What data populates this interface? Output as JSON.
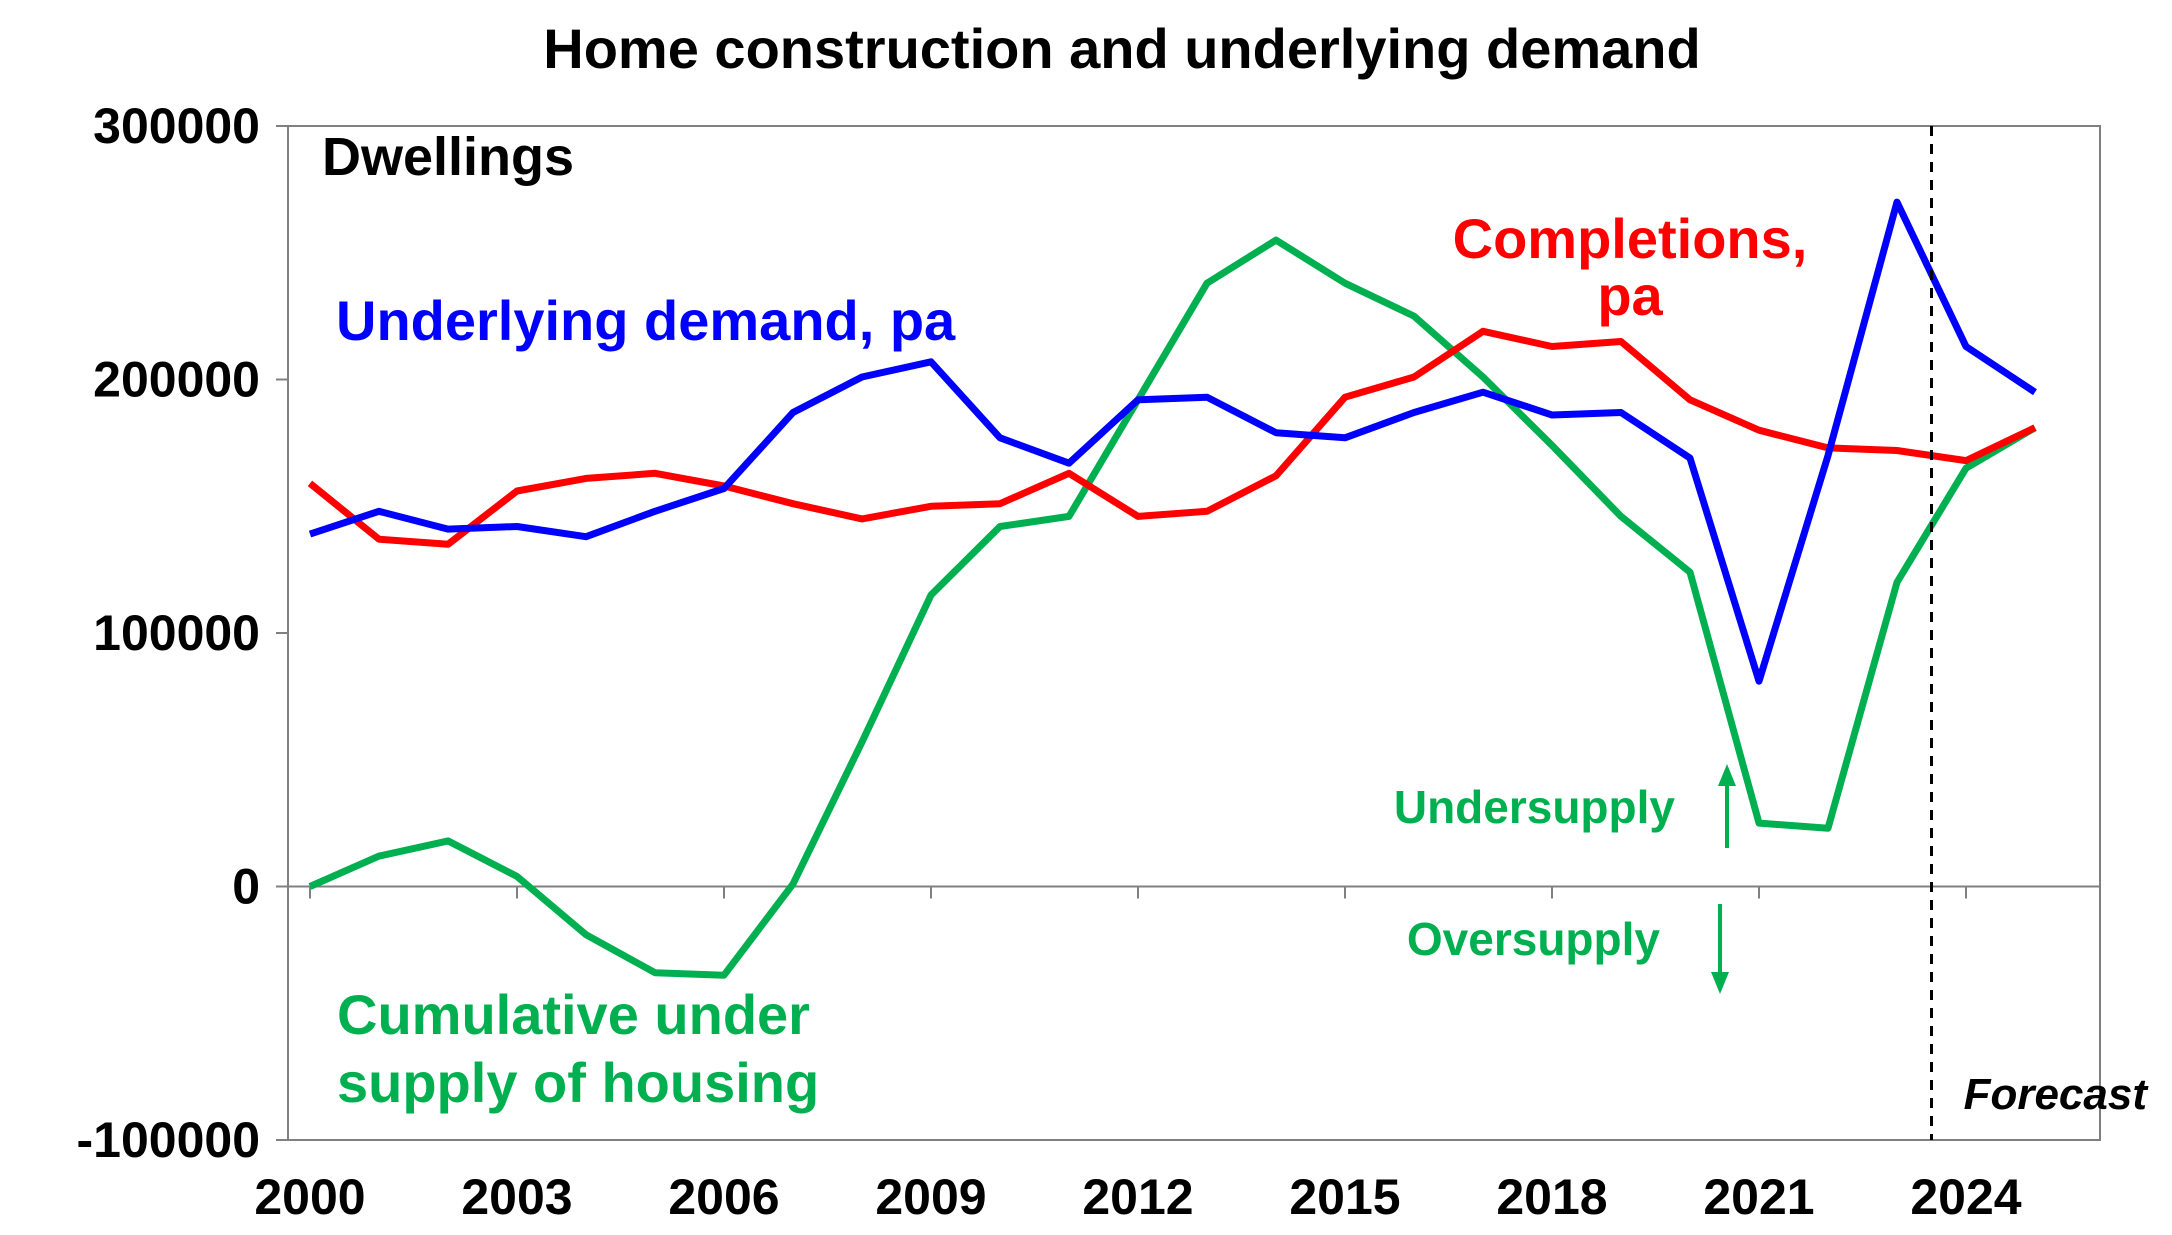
{
  "chart_data": {
    "type": "line",
    "title": "Home construction and underlying demand",
    "unit_label": "Dwellings",
    "x": [
      2000,
      2001,
      2002,
      2003,
      2004,
      2005,
      2006,
      2007,
      2008,
      2009,
      2010,
      2011,
      2012,
      2013,
      2014,
      2015,
      2016,
      2017,
      2018,
      2019,
      2020,
      2021,
      2022,
      2023,
      2024,
      2025
    ],
    "xticks": [
      "2000",
      "2003",
      "2006",
      "2009",
      "2012",
      "2015",
      "2018",
      "2021",
      "2024"
    ],
    "xtick_values": [
      2000,
      2003,
      2006,
      2009,
      2012,
      2015,
      2018,
      2021,
      2024
    ],
    "xlim": [
      2000,
      2026
    ],
    "ylim": [
      -100000,
      300000
    ],
    "yticks": [
      "-100000",
      "0",
      "100000",
      "200000",
      "300000"
    ],
    "ytick_values": [
      -100000,
      0,
      100000,
      200000,
      300000
    ],
    "series": [
      {
        "name": "Underlying demand, pa",
        "label_lines": [
          "Underlying demand, pa"
        ],
        "color": "#0000ff",
        "values": [
          139000,
          148000,
          141000,
          142000,
          138000,
          148000,
          157000,
          187000,
          201000,
          207000,
          177000,
          167000,
          192000,
          193000,
          179000,
          177000,
          187000,
          195000,
          186000,
          187000,
          169000,
          81000,
          170000,
          270000,
          213000,
          195000
        ]
      },
      {
        "name": "Completions, pa",
        "label_lines": [
          "Completions,",
          "pa"
        ],
        "color": "#ff0000",
        "values": [
          159000,
          137000,
          135000,
          156000,
          161000,
          163000,
          158000,
          151000,
          145000,
          150000,
          151000,
          163000,
          146000,
          148000,
          162000,
          193000,
          201000,
          219000,
          213000,
          215000,
          192000,
          180000,
          173000,
          172000,
          168000,
          181000
        ]
      },
      {
        "name": "Cumulative under supply of housing",
        "label_lines": [
          "Cumulative under",
          "supply of housing"
        ],
        "color": "#00b050",
        "values": [
          0,
          12000,
          18000,
          4000,
          -19000,
          -34000,
          -35000,
          1000,
          57000,
          115000,
          142000,
          146000,
          192000,
          238000,
          255000,
          238000,
          225000,
          201000,
          174000,
          146000,
          124000,
          25000,
          23000,
          120000,
          165000,
          181000
        ]
      }
    ],
    "annotations": {
      "undersupply": "Undersupply",
      "oversupply": "Oversupply",
      "forecast": "Forecast",
      "forecast_x": 2023.5
    },
    "grid": false,
    "legend": "none"
  }
}
